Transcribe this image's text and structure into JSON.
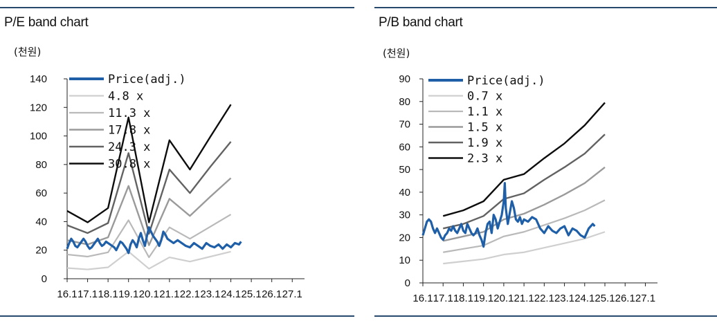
{
  "chart_data": [
    {
      "type": "line",
      "title": "P/E band chart",
      "unit": "(천원)",
      "ylim": [
        0,
        140
      ],
      "y_ticks": [
        0,
        20,
        40,
        60,
        80,
        100,
        120,
        140
      ],
      "x_ticks": [
        "16.1",
        "17.1",
        "18.1",
        "19.1",
        "20.1",
        "21.1",
        "22.1",
        "23.1",
        "24.1",
        "25.1",
        "26.1",
        "27.1"
      ],
      "xlim": [
        0,
        11.6
      ],
      "legend_position": "top-left",
      "colors": {
        "price": "#1f5fa8",
        "band1": "#cfcfcf",
        "band2": "#b9b9b9",
        "band3": "#9a9a9a",
        "band4": "#626262",
        "band5": "#0d0d0d"
      },
      "band_x": [
        0,
        1,
        2,
        3,
        4,
        5,
        6,
        7,
        8
      ],
      "series": [
        {
          "name": "Price(adj.)",
          "x": [
            0,
            0.1,
            0.2,
            0.3,
            0.4,
            0.5,
            0.6,
            0.7,
            0.8,
            0.9,
            1.0,
            1.1,
            1.2,
            1.3,
            1.4,
            1.5,
            1.6,
            1.7,
            1.8,
            1.9,
            2.0,
            2.1,
            2.2,
            2.3,
            2.4,
            2.5,
            2.6,
            2.7,
            2.8,
            2.9,
            3.0,
            3.1,
            3.2,
            3.3,
            3.4,
            3.5,
            3.6,
            3.7,
            3.8,
            3.9,
            4.0,
            4.1,
            4.2,
            4.3,
            4.4,
            4.5,
            4.6,
            4.7,
            4.8,
            4.9,
            5.0,
            5.2,
            5.4,
            5.6,
            5.8,
            6.0,
            6.2,
            6.4,
            6.6,
            6.8,
            7.0,
            7.2,
            7.4,
            7.6,
            7.8,
            8.0,
            8.2,
            8.4,
            8.5
          ],
          "values": [
            21,
            25,
            28,
            26,
            23,
            22,
            24,
            26,
            28,
            26,
            23,
            21,
            22,
            24,
            26,
            28,
            25,
            23,
            24,
            26,
            25,
            24,
            23,
            22,
            20,
            23,
            26,
            25,
            23,
            21,
            18,
            24,
            27,
            25,
            22,
            28,
            32,
            27,
            23,
            30,
            36,
            33,
            30,
            28,
            26,
            23,
            27,
            33,
            31,
            28,
            27,
            25,
            27,
            25,
            23,
            22,
            25,
            23,
            21,
            25,
            23,
            22,
            24,
            21,
            24,
            22,
            25,
            24,
            26
          ]
        },
        {
          "name": "4.8 x",
          "values": [
            7.5,
            6.5,
            8,
            19,
            7,
            15,
            12,
            15.5,
            19
          ]
        },
        {
          "name": "11.3 x",
          "values": [
            17,
            15.5,
            18.5,
            41,
            15,
            36,
            28,
            36.5,
            45
          ]
        },
        {
          "name": "17.8 x",
          "values": [
            27,
            24,
            29,
            65,
            23.5,
            56,
            44,
            57.5,
            70.5
          ]
        },
        {
          "name": "24.3 x",
          "values": [
            37.5,
            32,
            39,
            88,
            31.5,
            76.5,
            60,
            78.5,
            96
          ]
        },
        {
          "name": "30.8 x",
          "values": [
            47.5,
            39.5,
            49.5,
            113,
            39.5,
            97,
            76.5,
            99.5,
            122
          ]
        }
      ]
    },
    {
      "type": "line",
      "title": "P/B band chart",
      "unit": "(천원)",
      "ylim": [
        0,
        90
      ],
      "y_ticks": [
        0,
        10,
        20,
        30,
        40,
        50,
        60,
        70,
        80,
        90
      ],
      "x_ticks": [
        "16.1",
        "17.1",
        "18.1",
        "19.1",
        "20.1",
        "21.1",
        "22.1",
        "23.1",
        "24.1",
        "25.1",
        "26.1",
        "27.1"
      ],
      "xlim": [
        0,
        11.6
      ],
      "legend_position": "top-left",
      "colors": {
        "price": "#1f5fa8",
        "band1": "#cfcfcf",
        "band2": "#b9b9b9",
        "band3": "#9a9a9a",
        "band4": "#626262",
        "band5": "#0d0d0d"
      },
      "band_x": [
        1,
        2,
        3,
        4,
        5,
        6,
        7,
        8,
        9
      ],
      "series": [
        {
          "name": "Price(adj.)",
          "x": [
            0,
            0.1,
            0.2,
            0.3,
            0.4,
            0.5,
            0.6,
            0.7,
            0.8,
            0.9,
            1.0,
            1.1,
            1.2,
            1.3,
            1.4,
            1.5,
            1.6,
            1.7,
            1.8,
            1.9,
            2.0,
            2.1,
            2.2,
            2.3,
            2.4,
            2.5,
            2.6,
            2.7,
            2.8,
            2.9,
            3.0,
            3.1,
            3.2,
            3.3,
            3.4,
            3.5,
            3.6,
            3.7,
            3.8,
            3.9,
            4.0,
            4.05,
            4.1,
            4.2,
            4.3,
            4.4,
            4.5,
            4.6,
            4.7,
            4.8,
            4.9,
            5.0,
            5.2,
            5.4,
            5.6,
            5.8,
            6.0,
            6.2,
            6.4,
            6.6,
            6.8,
            7.0,
            7.2,
            7.4,
            7.6,
            7.8,
            8.0,
            8.2,
            8.4,
            8.5
          ],
          "values": [
            21,
            24,
            27,
            28,
            27,
            24,
            22,
            24,
            22,
            20,
            19,
            21,
            22,
            24,
            23,
            25,
            23,
            22,
            24,
            26,
            23,
            22,
            26,
            24,
            22,
            21,
            22,
            24,
            21,
            19,
            16,
            22,
            26,
            27,
            22,
            30,
            28,
            24,
            27,
            30,
            36,
            44,
            33,
            26,
            31,
            36,
            33,
            28,
            27,
            29,
            26,
            28,
            27,
            29,
            28,
            24,
            22,
            25,
            23,
            22,
            24,
            25,
            21,
            24,
            23,
            21,
            20,
            24,
            26,
            25
          ]
        },
        {
          "name": "0.7 x",
          "values": [
            8.5,
            9.5,
            10.5,
            12.5,
            13.5,
            15.5,
            17.5,
            19.5,
            22.5
          ]
        },
        {
          "name": "1.1 x",
          "values": [
            13.5,
            15,
            16.5,
            20.5,
            22.5,
            25.5,
            28.5,
            32,
            36.5
          ]
        },
        {
          "name": "1.5 x",
          "values": [
            18.5,
            20.5,
            22.5,
            28,
            30.5,
            34.5,
            39,
            44,
            51
          ]
        },
        {
          "name": "1.9 x",
          "values": [
            24,
            26,
            29.5,
            37,
            39.5,
            45.5,
            51,
            57,
            65.5
          ]
        },
        {
          "name": "2.3 x",
          "values": [
            29.5,
            32,
            36,
            45.5,
            48,
            55,
            61.5,
            69.5,
            79.5
          ]
        }
      ]
    }
  ]
}
